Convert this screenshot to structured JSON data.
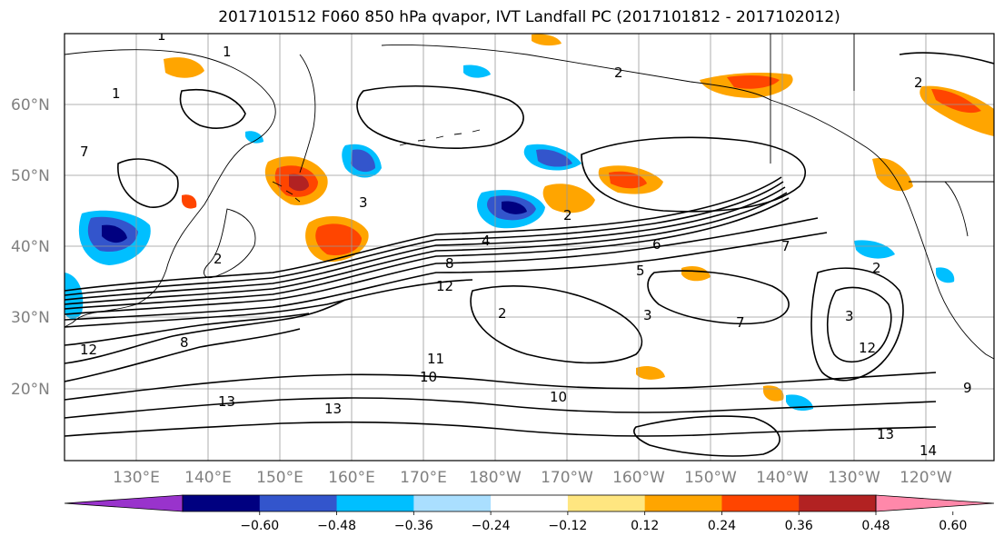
{
  "title": "2017101512 F060 850 hPa qvapor, IVT Landfall PC (2017101812 - 2017102012)",
  "map": {
    "lat_labels": [
      "60°N",
      "50°N",
      "40°N",
      "30°N",
      "20°N"
    ],
    "lon_labels": [
      "130°E",
      "140°E",
      "150°E",
      "160°E",
      "170°E",
      "180°W",
      "170°W",
      "160°W",
      "150°W",
      "140°W",
      "130°W",
      "120°W"
    ],
    "contour_labels": [
      "1",
      "1",
      "2",
      "1",
      "2",
      "2",
      "3",
      "4",
      "7",
      "6",
      "5",
      "3",
      "2",
      "2",
      "7",
      "12",
      "8",
      "13",
      "13",
      "11",
      "10",
      "10",
      "13",
      "12",
      "9",
      "14",
      "7",
      "2",
      "8",
      "12",
      "3"
    ],
    "colors": {
      "land_outline": "#000000",
      "gridline": "#999999",
      "contour": "#000000"
    }
  },
  "colorbar": {
    "ticks": [
      "−0.60",
      "−0.48",
      "−0.36",
      "−0.24",
      "−0.12",
      "0.12",
      "0.24",
      "0.36",
      "0.48",
      "0.60"
    ],
    "bins": [
      "#9933cc",
      "#000080",
      "#3355cc",
      "#00bfff",
      "#aadfff",
      "#ffffff",
      "#ffe680",
      "#ffa500",
      "#ff4500",
      "#b22222",
      "#ff88aa"
    ]
  }
}
